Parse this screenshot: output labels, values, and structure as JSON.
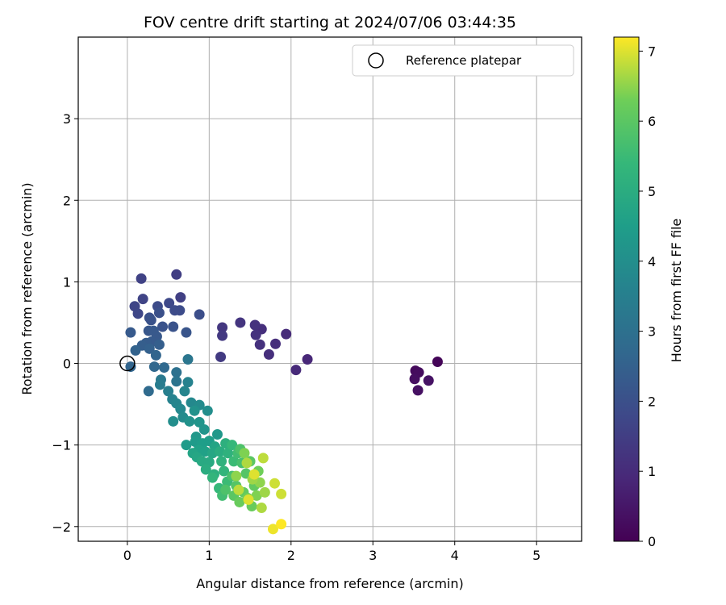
{
  "chart_data": {
    "type": "scatter",
    "title": "FOV centre drift starting at 2024/07/06 03:44:35",
    "xlabel": "Angular distance from reference (arcmin)",
    "ylabel": "Rotation from reference (arcmin)",
    "xlim": [
      -0.6,
      5.55
    ],
    "ylim": [
      -2.18,
      4.0
    ],
    "xticks": [
      0,
      1,
      2,
      3,
      4,
      5
    ],
    "yticks": [
      -2,
      -1,
      0,
      1,
      2,
      3
    ],
    "xtick_labels": [
      "0",
      "1",
      "2",
      "3",
      "4",
      "5"
    ],
    "ytick_labels": [
      "−2",
      "−1",
      "0",
      "1",
      "2",
      "3"
    ],
    "grid": true,
    "colormap": "viridis",
    "colorbar": {
      "label": "Hours from first FF file",
      "range": [
        0,
        7.2
      ],
      "ticks": [
        0,
        1,
        2,
        3,
        4,
        5,
        6,
        7
      ],
      "tick_labels": [
        "0",
        "1",
        "2",
        "3",
        "4",
        "5",
        "6",
        "7"
      ]
    },
    "legend": {
      "placement": "top-right",
      "entries": [
        "Reference platepar"
      ]
    },
    "reference_point": {
      "x": 0,
      "y": 0
    },
    "points": [
      {
        "x": 3.79,
        "y": 0.02,
        "c": 0.1
      },
      {
        "x": 3.52,
        "y": -0.09,
        "c": 0.2
      },
      {
        "x": 3.56,
        "y": -0.11,
        "c": 0.25
      },
      {
        "x": 3.51,
        "y": -0.19,
        "c": 0.3
      },
      {
        "x": 3.55,
        "y": -0.33,
        "c": 0.35
      },
      {
        "x": 3.68,
        "y": -0.21,
        "c": 0.4
      },
      {
        "x": 2.2,
        "y": 0.05,
        "c": 0.9
      },
      {
        "x": 2.06,
        "y": -0.08,
        "c": 0.95
      },
      {
        "x": 1.94,
        "y": 0.36,
        "c": 1.0
      },
      {
        "x": 1.81,
        "y": 0.24,
        "c": 1.05
      },
      {
        "x": 1.73,
        "y": 0.11,
        "c": 1.1
      },
      {
        "x": 1.64,
        "y": 0.42,
        "c": 1.1
      },
      {
        "x": 1.62,
        "y": 0.23,
        "c": 1.15
      },
      {
        "x": 1.57,
        "y": 0.35,
        "c": 1.2
      },
      {
        "x": 1.56,
        "y": 0.47,
        "c": 1.2
      },
      {
        "x": 1.38,
        "y": 0.5,
        "c": 1.25
      },
      {
        "x": 1.16,
        "y": 0.44,
        "c": 1.3
      },
      {
        "x": 1.16,
        "y": 0.34,
        "c": 1.35
      },
      {
        "x": 1.14,
        "y": 0.08,
        "c": 1.4
      },
      {
        "x": 0.6,
        "y": 1.09,
        "c": 1.5
      },
      {
        "x": 0.65,
        "y": 0.81,
        "c": 1.55
      },
      {
        "x": 0.17,
        "y": 1.04,
        "c": 1.6
      },
      {
        "x": 0.19,
        "y": 0.79,
        "c": 1.65
      },
      {
        "x": 0.09,
        "y": 0.7,
        "c": 1.7
      },
      {
        "x": 0.13,
        "y": 0.61,
        "c": 1.75
      },
      {
        "x": 0.51,
        "y": 0.74,
        "c": 1.8
      },
      {
        "x": 0.37,
        "y": 0.7,
        "c": 1.85
      },
      {
        "x": 0.58,
        "y": 0.65,
        "c": 1.9
      },
      {
        "x": 0.64,
        "y": 0.65,
        "c": 1.9
      },
      {
        "x": 0.88,
        "y": 0.6,
        "c": 1.95
      },
      {
        "x": 0.39,
        "y": 0.62,
        "c": 2.0
      },
      {
        "x": 0.27,
        "y": 0.56,
        "c": 2.0
      },
      {
        "x": 0.29,
        "y": 0.53,
        "c": 2.05
      },
      {
        "x": 0.43,
        "y": 0.45,
        "c": 2.1
      },
      {
        "x": 0.56,
        "y": 0.45,
        "c": 2.1
      },
      {
        "x": 0.72,
        "y": 0.38,
        "c": 2.15
      },
      {
        "x": 0.26,
        "y": 0.4,
        "c": 2.2
      },
      {
        "x": 0.32,
        "y": 0.4,
        "c": 2.25
      },
      {
        "x": 0.36,
        "y": 0.33,
        "c": 2.25
      },
      {
        "x": 0.04,
        "y": 0.38,
        "c": 2.3
      },
      {
        "x": 0.3,
        "y": 0.27,
        "c": 2.3
      },
      {
        "x": 0.23,
        "y": 0.25,
        "c": 2.35
      },
      {
        "x": 0.18,
        "y": 0.22,
        "c": 2.4
      },
      {
        "x": 0.39,
        "y": 0.23,
        "c": 2.45
      },
      {
        "x": 0.27,
        "y": 0.18,
        "c": 2.5
      },
      {
        "x": 0.1,
        "y": 0.16,
        "c": 2.55
      },
      {
        "x": 0.35,
        "y": 0.1,
        "c": 2.6
      },
      {
        "x": 0.04,
        "y": -0.04,
        "c": 2.6
      },
      {
        "x": 0.33,
        "y": -0.04,
        "c": 2.7
      },
      {
        "x": 0.45,
        "y": -0.05,
        "c": 2.75
      },
      {
        "x": 0.26,
        "y": -0.34,
        "c": 2.8
      },
      {
        "x": 0.6,
        "y": -0.11,
        "c": 3.0
      },
      {
        "x": 0.6,
        "y": -0.22,
        "c": 3.1
      },
      {
        "x": 0.74,
        "y": 0.05,
        "c": 3.2
      },
      {
        "x": 0.41,
        "y": -0.2,
        "c": 3.3
      },
      {
        "x": 0.4,
        "y": -0.26,
        "c": 3.4
      },
      {
        "x": 0.5,
        "y": -0.34,
        "c": 3.5
      },
      {
        "x": 0.74,
        "y": -0.23,
        "c": 3.6
      },
      {
        "x": 0.55,
        "y": -0.44,
        "c": 3.6
      },
      {
        "x": 0.6,
        "y": -0.49,
        "c": 3.7
      },
      {
        "x": 0.7,
        "y": -0.34,
        "c": 3.7
      },
      {
        "x": 0.65,
        "y": -0.56,
        "c": 3.8
      },
      {
        "x": 0.78,
        "y": -0.48,
        "c": 3.8
      },
      {
        "x": 0.88,
        "y": -0.51,
        "c": 3.9
      },
      {
        "x": 0.68,
        "y": -0.66,
        "c": 3.9
      },
      {
        "x": 0.56,
        "y": -0.71,
        "c": 4.0
      },
      {
        "x": 0.98,
        "y": -0.58,
        "c": 4.0
      },
      {
        "x": 0.82,
        "y": -0.58,
        "c": 4.1
      },
      {
        "x": 0.76,
        "y": -0.71,
        "c": 4.1
      },
      {
        "x": 0.88,
        "y": -0.72,
        "c": 4.2
      },
      {
        "x": 0.94,
        "y": -0.81,
        "c": 4.2
      },
      {
        "x": 0.84,
        "y": -0.9,
        "c": 4.3
      },
      {
        "x": 1.1,
        "y": -0.87,
        "c": 4.3
      },
      {
        "x": 0.83,
        "y": -0.96,
        "c": 4.4
      },
      {
        "x": 0.72,
        "y": -1.0,
        "c": 4.4
      },
      {
        "x": 0.92,
        "y": -0.98,
        "c": 4.5
      },
      {
        "x": 1.0,
        "y": -0.95,
        "c": 4.5
      },
      {
        "x": 0.87,
        "y": -1.06,
        "c": 4.6
      },
      {
        "x": 0.95,
        "y": -1.08,
        "c": 4.6
      },
      {
        "x": 0.8,
        "y": -1.1,
        "c": 4.7
      },
      {
        "x": 1.07,
        "y": -1.02,
        "c": 4.7
      },
      {
        "x": 0.85,
        "y": -1.15,
        "c": 4.8
      },
      {
        "x": 1.04,
        "y": -1.1,
        "c": 4.8
      },
      {
        "x": 0.91,
        "y": -1.2,
        "c": 4.9
      },
      {
        "x": 1.0,
        "y": -1.21,
        "c": 4.9
      },
      {
        "x": 1.13,
        "y": -1.08,
        "c": 5.0
      },
      {
        "x": 0.96,
        "y": -1.3,
        "c": 5.0
      },
      {
        "x": 1.2,
        "y": -0.98,
        "c": 5.1
      },
      {
        "x": 1.06,
        "y": -1.36,
        "c": 5.1
      },
      {
        "x": 1.15,
        "y": -1.2,
        "c": 5.2
      },
      {
        "x": 1.23,
        "y": -1.1,
        "c": 5.2
      },
      {
        "x": 1.04,
        "y": -1.4,
        "c": 5.3
      },
      {
        "x": 1.18,
        "y": -1.32,
        "c": 5.3
      },
      {
        "x": 1.28,
        "y": -1.0,
        "c": 5.4
      },
      {
        "x": 1.12,
        "y": -1.53,
        "c": 5.4
      },
      {
        "x": 1.3,
        "y": -1.2,
        "c": 5.5
      },
      {
        "x": 1.22,
        "y": -1.45,
        "c": 5.5
      },
      {
        "x": 1.16,
        "y": -1.62,
        "c": 5.6
      },
      {
        "x": 1.35,
        "y": -1.1,
        "c": 5.6
      },
      {
        "x": 1.28,
        "y": -1.38,
        "c": 5.7
      },
      {
        "x": 1.4,
        "y": -1.22,
        "c": 5.7
      },
      {
        "x": 1.2,
        "y": -1.55,
        "c": 5.8
      },
      {
        "x": 1.38,
        "y": -1.05,
        "c": 5.8
      },
      {
        "x": 1.33,
        "y": -1.5,
        "c": 5.9
      },
      {
        "x": 1.45,
        "y": -1.35,
        "c": 5.9
      },
      {
        "x": 1.3,
        "y": -1.62,
        "c": 6.0
      },
      {
        "x": 1.5,
        "y": -1.2,
        "c": 6.0
      },
      {
        "x": 1.42,
        "y": -1.58,
        "c": 6.1
      },
      {
        "x": 1.55,
        "y": -1.5,
        "c": 6.1
      },
      {
        "x": 1.37,
        "y": -1.7,
        "c": 6.2
      },
      {
        "x": 1.52,
        "y": -1.75,
        "c": 6.2
      },
      {
        "x": 1.6,
        "y": -1.32,
        "c": 6.3
      },
      {
        "x": 1.47,
        "y": -1.65,
        "c": 6.3
      },
      {
        "x": 1.58,
        "y": -1.62,
        "c": 6.4
      },
      {
        "x": 1.43,
        "y": -1.1,
        "c": 6.4
      },
      {
        "x": 1.62,
        "y": -1.46,
        "c": 6.5
      },
      {
        "x": 1.33,
        "y": -1.38,
        "c": 6.5
      },
      {
        "x": 1.68,
        "y": -1.58,
        "c": 6.6
      },
      {
        "x": 1.53,
        "y": -1.42,
        "c": 6.6
      },
      {
        "x": 1.46,
        "y": -1.22,
        "c": 6.7
      },
      {
        "x": 1.64,
        "y": -1.77,
        "c": 6.7
      },
      {
        "x": 1.36,
        "y": -1.55,
        "c": 6.8
      },
      {
        "x": 1.66,
        "y": -1.16,
        "c": 6.8
      },
      {
        "x": 1.8,
        "y": -1.47,
        "c": 6.9
      },
      {
        "x": 1.88,
        "y": -1.6,
        "c": 6.9
      },
      {
        "x": 1.55,
        "y": -1.36,
        "c": 7.0
      },
      {
        "x": 1.48,
        "y": -1.67,
        "c": 7.0
      },
      {
        "x": 1.78,
        "y": -2.03,
        "c": 7.1
      },
      {
        "x": 1.88,
        "y": -1.97,
        "c": 7.2
      }
    ]
  }
}
